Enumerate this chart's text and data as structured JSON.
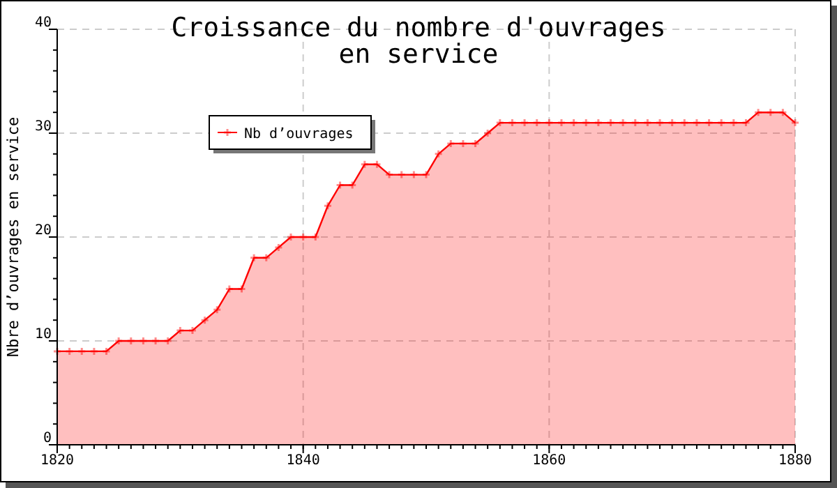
{
  "chart_data": {
    "type": "area",
    "title": "Croissance du nombre d'ouvrages\nen service",
    "ylabel": "Nbre d’ouvrages en service",
    "x": [
      1820,
      1821,
      1822,
      1823,
      1824,
      1825,
      1826,
      1827,
      1828,
      1829,
      1830,
      1831,
      1832,
      1833,
      1834,
      1835,
      1836,
      1837,
      1838,
      1839,
      1840,
      1841,
      1842,
      1843,
      1844,
      1845,
      1846,
      1847,
      1848,
      1849,
      1850,
      1851,
      1852,
      1853,
      1854,
      1855,
      1856,
      1857,
      1858,
      1859,
      1860,
      1861,
      1862,
      1863,
      1864,
      1865,
      1866,
      1867,
      1868,
      1869,
      1870,
      1871,
      1872,
      1873,
      1874,
      1875,
      1876,
      1877,
      1878,
      1879,
      1880
    ],
    "series": [
      {
        "name": "Nb d’ouvrages",
        "color": "#ff0000",
        "values": [
          9,
          9,
          9,
          9,
          9,
          10,
          10,
          10,
          10,
          10,
          11,
          11,
          12,
          13,
          15,
          15,
          18,
          18,
          19,
          20,
          20,
          20,
          23,
          25,
          25,
          27,
          27,
          26,
          26,
          26,
          26,
          28,
          29,
          29,
          29,
          30,
          31,
          31,
          31,
          31,
          31,
          31,
          31,
          31,
          31,
          31,
          31,
          31,
          31,
          31,
          31,
          31,
          31,
          31,
          31,
          31,
          31,
          32,
          32,
          32,
          31
        ]
      }
    ],
    "xlim": [
      1820,
      1880
    ],
    "xticks": [
      1820,
      1840,
      1860,
      1880
    ],
    "ylim": [
      0,
      40
    ],
    "yticks": [
      0,
      10,
      20,
      30,
      40
    ],
    "grid": true,
    "legend": "top left",
    "marker": "cross",
    "line_style": "solid"
  }
}
